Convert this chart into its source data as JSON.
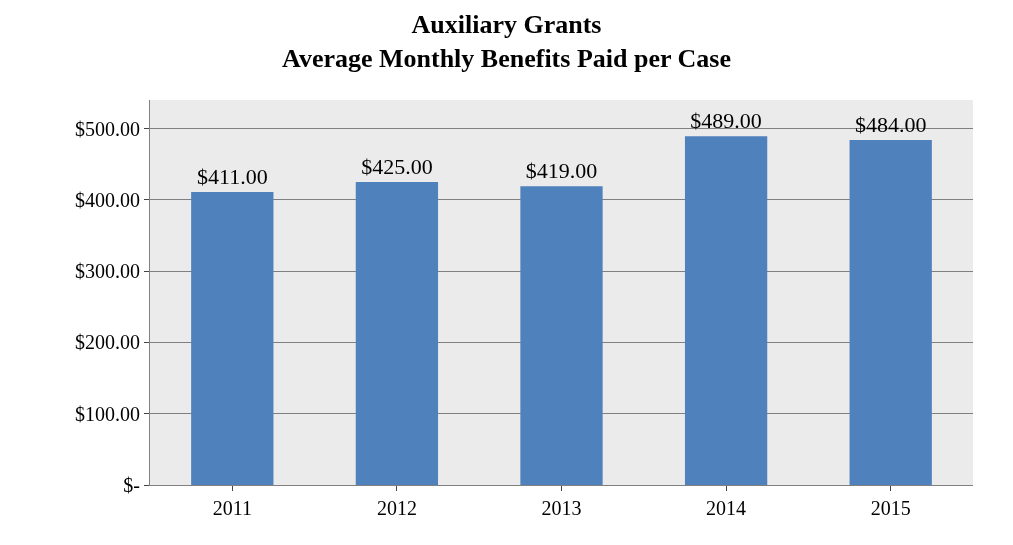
{
  "chart_data": {
    "type": "bar",
    "title": "Auxiliary Grants\nAverage Monthly Benefits Paid per Case",
    "categories": [
      "2011",
      "2012",
      "2013",
      "2014",
      "2015"
    ],
    "values": [
      411,
      425,
      419,
      489,
      484
    ],
    "value_labels": [
      "$411.00",
      "$425.00",
      "$419.00",
      "$489.00",
      "$484.00"
    ],
    "color": "#4f81bd",
    "ylim": [
      0,
      540
    ],
    "yticks": [
      {
        "value": 0,
        "label": "$-"
      },
      {
        "value": 100,
        "label": "$100.00"
      },
      {
        "value": 200,
        "label": "$200.00"
      },
      {
        "value": 300,
        "label": "$300.00"
      },
      {
        "value": 400,
        "label": "$400.00"
      },
      {
        "value": 500,
        "label": "$500.00"
      }
    ],
    "grid": "y"
  }
}
